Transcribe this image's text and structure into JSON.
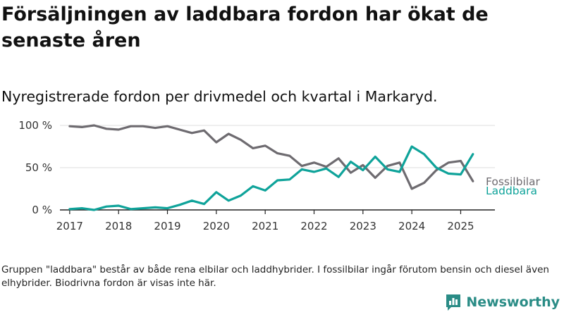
{
  "title": "Försäljningen av laddbara fordon har ökat de senaste åren",
  "subtitle": "Nyregistrerade fordon per drivmedel och kvartal i Markaryd.",
  "footnote": "Gruppen \"laddbara\" består av både rena elbilar och laddhybrider. I fossilbilar ingår förutom bensin och diesel även elhybrider. Biodrivna fordon är visas inte här.",
  "brand": {
    "name": "Newsworthy",
    "color": "#2a8c86",
    "icon": "bar-chart-icon"
  },
  "chart_data": {
    "type": "line",
    "x_start": 2017.0,
    "x_step": 0.25,
    "xlim": [
      2016.8,
      2025.7
    ],
    "ylim": [
      0,
      100
    ],
    "xticks": [
      2017,
      2018,
      2019,
      2020,
      2021,
      2022,
      2023,
      2024,
      2025
    ],
    "xtick_labels": [
      "2017",
      "2018",
      "2019",
      "2020",
      "2021",
      "2022",
      "2023",
      "2024",
      "2025"
    ],
    "yticks": [
      0,
      50,
      100
    ],
    "ytick_labels": [
      "0 %",
      "50 %",
      "100 %"
    ],
    "grid": "horizontal",
    "series": [
      {
        "name": "Fossilbilar",
        "color": "#6e6b70",
        "values": [
          99,
          98,
          100,
          96,
          95,
          99,
          99,
          97,
          99,
          95,
          91,
          94,
          80,
          90,
          83,
          73,
          76,
          67,
          64,
          52,
          56,
          51,
          61,
          44,
          53,
          38,
          52,
          56,
          25,
          32,
          47,
          56,
          58,
          34
        ]
      },
      {
        "name": "Laddbara",
        "color": "#0fa39a",
        "values": [
          1,
          2,
          0,
          4,
          5,
          1,
          2,
          3,
          2,
          6,
          11,
          7,
          21,
          11,
          17,
          28,
          23,
          35,
          36,
          48,
          45,
          49,
          39,
          57,
          47,
          63,
          48,
          45,
          75,
          66,
          50,
          43,
          42,
          66
        ]
      }
    ]
  }
}
